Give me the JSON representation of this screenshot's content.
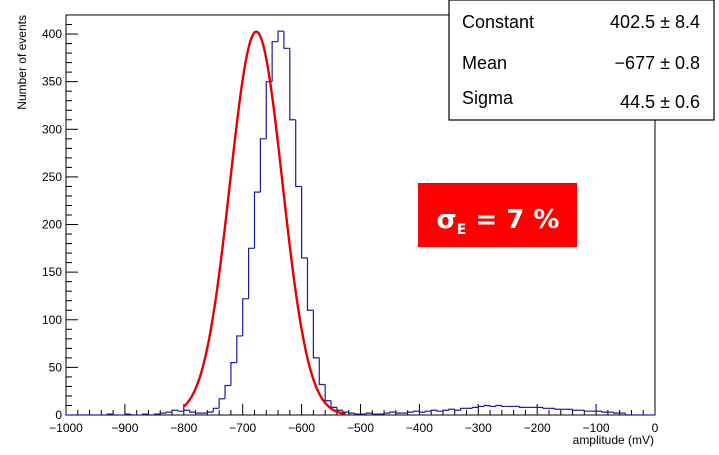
{
  "chart_data": {
    "type": "histogram",
    "xlabel": "amplitude (mV)",
    "ylabel": "Number of events",
    "xlim": [
      -1000,
      0
    ],
    "ylim": [
      0,
      420
    ],
    "x_ticks": [
      -1000,
      -900,
      -800,
      -700,
      -600,
      -500,
      -400,
      -300,
      -200,
      -100,
      0
    ],
    "x_tick_labels": [
      "−1000",
      "−900",
      "−800",
      "−700",
      "−600",
      "−500",
      "−400",
      "−300",
      "−200",
      "−100",
      "0"
    ],
    "y_ticks": [
      0,
      50,
      100,
      150,
      200,
      250,
      300,
      350,
      400
    ],
    "y_tick_labels": [
      "0",
      "50",
      "100",
      "150",
      "200",
      "250",
      "300",
      "350",
      "400"
    ],
    "bin_width": 10,
    "histogram": {
      "color": "#1a1aa6",
      "bin_edges_start": -1000,
      "counts": [
        0,
        0,
        0,
        0,
        0,
        0,
        0,
        1,
        0,
        0,
        1,
        0,
        0,
        1,
        0,
        1,
        2,
        3,
        5,
        4,
        5,
        3,
        2,
        2,
        3,
        7,
        17,
        31,
        55,
        83,
        122,
        175,
        234,
        290,
        350,
        392,
        403,
        385,
        310,
        240,
        165,
        110,
        60,
        32,
        15,
        8,
        5,
        3,
        2,
        1,
        1,
        2,
        1,
        1,
        2,
        3,
        2,
        2,
        3,
        4,
        3,
        4,
        5,
        4,
        5,
        6,
        5,
        7,
        7,
        8,
        9,
        10,
        9,
        10,
        9,
        9,
        9,
        8,
        8,
        8,
        8,
        7,
        7,
        6,
        6,
        6,
        5,
        5,
        4,
        4,
        4,
        3,
        3,
        2,
        2,
        0,
        0,
        0,
        0,
        0
      ]
    },
    "fit": {
      "function": "gaus",
      "color": "#e60000",
      "range": [
        -800,
        -525
      ],
      "constant": 402.5,
      "mean": -677,
      "sigma": 44.5
    },
    "stats_box": {
      "rows": [
        {
          "name": "Constant",
          "value": "402.5 ± 8.4"
        },
        {
          "name": "Mean",
          "value": "−677 ± 0.8"
        },
        {
          "name": "Sigma",
          "value": "44.5 ± 0.6"
        }
      ]
    },
    "annotation": {
      "prefix": "σ",
      "subscript": "E",
      "suffix": " = 7 %",
      "background": "#ff0000"
    }
  }
}
